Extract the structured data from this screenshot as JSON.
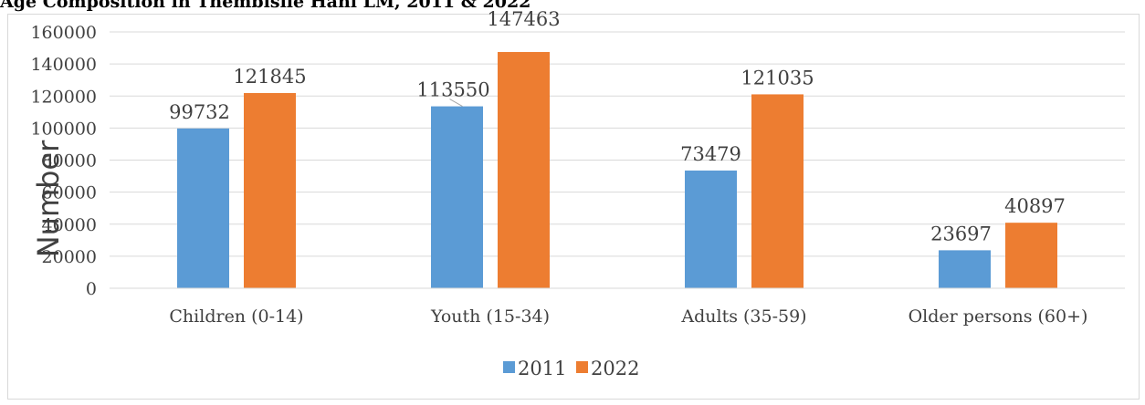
{
  "chart_data": {
    "type": "bar",
    "title": "Age Composition in Thembisile Hani LM, 2011 & 2022",
    "ylabel": "Number",
    "xlabel": "",
    "ylim": [
      0,
      160000
    ],
    "yticks": [
      0,
      20000,
      40000,
      60000,
      80000,
      100000,
      120000,
      140000,
      160000
    ],
    "grid": true,
    "legend_position": "bottom",
    "categories": [
      "Children (0-14)",
      "Youth (15-34)",
      "Adults (35-59)",
      "Older persons (60+)"
    ],
    "series": [
      {
        "name": "2011",
        "color": "#5b9bd5",
        "values": [
          99732,
          113550,
          73479,
          23697
        ]
      },
      {
        "name": "2022",
        "color": "#ed7d31",
        "values": [
          121845,
          147463,
          121035,
          40897
        ]
      }
    ]
  }
}
